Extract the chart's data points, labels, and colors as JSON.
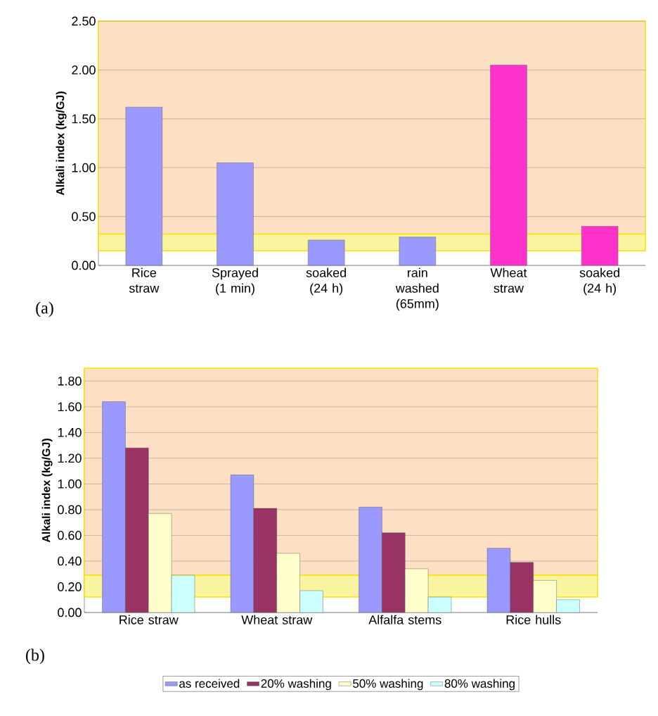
{
  "chart_data": [
    {
      "type": "bar",
      "ylabel": "Alkali index (kg/GJ)",
      "categories": [
        "Rice straw",
        "Sprayed (1 min)",
        "soaked (24 h)",
        "rain washed (65mm)",
        "Wheat straw",
        "soaked (24 h)"
      ],
      "values": [
        1.62,
        1.05,
        0.26,
        0.29,
        2.05,
        0.4
      ],
      "colors": [
        "#9999ff",
        "#9999ff",
        "#9999ff",
        "#9999ff",
        "#ff33cc",
        "#ff33cc"
      ],
      "ylim": [
        0,
        2.5
      ],
      "yticks": [
        {
          "value": 0,
          "label": "0.00"
        },
        {
          "value": 0.5,
          "label": "0.50"
        },
        {
          "value": 1,
          "label": "1.00"
        },
        {
          "value": 1.5,
          "label": "1.50"
        },
        {
          "value": 2,
          "label": "2.00"
        },
        {
          "value": 2.5,
          "label": "2.50"
        }
      ],
      "grid": "y",
      "bands": [
        {
          "axis": "y",
          "from": 0.32,
          "to": 2.5,
          "color": "#fde0c4"
        },
        {
          "axis": "y",
          "from": 0.15,
          "to": 0.32,
          "color": "#f8f4a0"
        }
      ],
      "annotations": [
        "(a)"
      ]
    },
    {
      "type": "bar",
      "ylabel": "Alkali index (kg/GJ)",
      "categories": [
        "Rice straw",
        "Wheat straw",
        "Alfalfa stems",
        "Rice hulls"
      ],
      "series": [
        {
          "name": "as received",
          "color": "#9999ff",
          "values": [
            1.64,
            1.07,
            0.82,
            0.5
          ]
        },
        {
          "name": "20% washing",
          "color": "#993366",
          "values": [
            1.28,
            0.81,
            0.62,
            0.39
          ]
        },
        {
          "name": "50% washing",
          "color": "#ffffcc",
          "values": [
            0.77,
            0.46,
            0.34,
            0.25
          ]
        },
        {
          "name": "80% washing",
          "color": "#ccffff",
          "values": [
            0.29,
            0.17,
            0.12,
            0.1
          ]
        }
      ],
      "ylim": [
        0,
        1.9
      ],
      "yticks": [
        {
          "value": 0,
          "label": "0.00"
        },
        {
          "value": 0.2,
          "label": "0.20"
        },
        {
          "value": 0.4,
          "label": "0.40"
        },
        {
          "value": 0.6,
          "label": "0.60"
        },
        {
          "value": 0.8,
          "label": "0.80"
        },
        {
          "value": 1,
          "label": "1.00"
        },
        {
          "value": 1.2,
          "label": "1.20"
        },
        {
          "value": 1.4,
          "label": "1.40"
        },
        {
          "value": 1.6,
          "label": "1.60"
        },
        {
          "value": 1.8,
          "label": "1.80"
        }
      ],
      "grid": "y",
      "legend": "bottom",
      "bands": [
        {
          "axis": "y",
          "from": 0.29,
          "to": 1.9,
          "color": "#fde0c4"
        },
        {
          "axis": "y",
          "from": 0.12,
          "to": 0.29,
          "color": "#f8f4a0"
        }
      ],
      "annotations": [
        "(b)"
      ]
    }
  ]
}
